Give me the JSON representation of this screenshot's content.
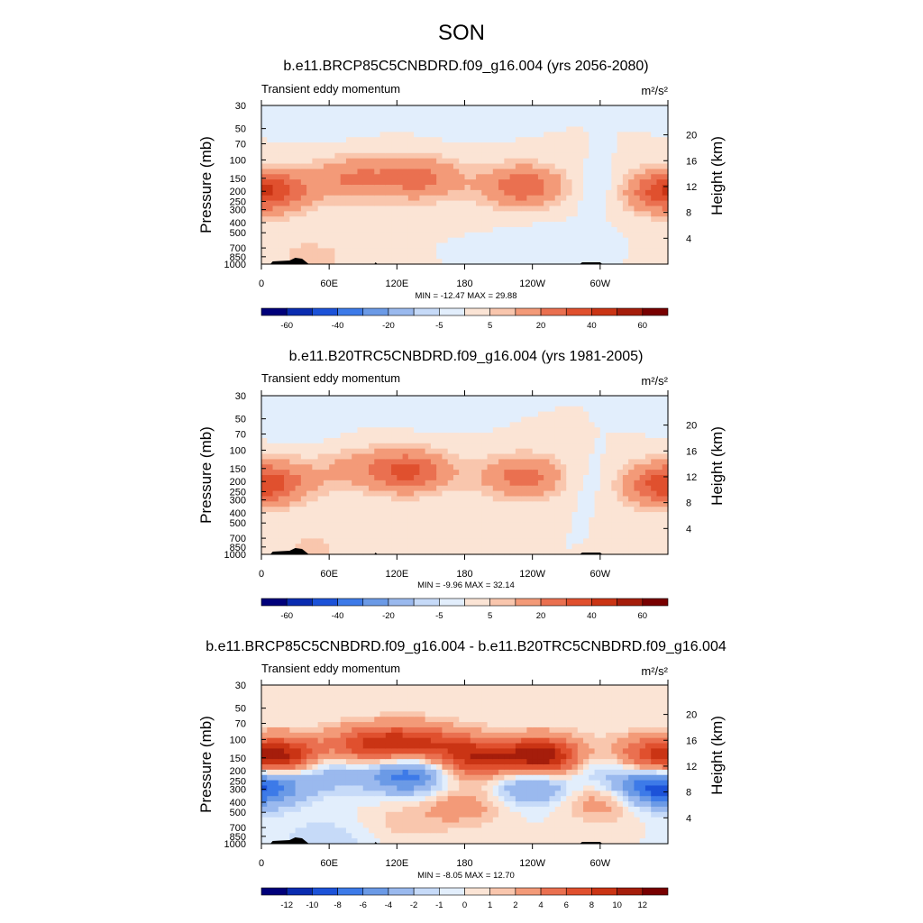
{
  "colors": {
    "scale": [
      "#00007a",
      "#0a2cb0",
      "#1c52d8",
      "#3d7ae8",
      "#6b9ae6",
      "#9ab9ee",
      "#c6daf8",
      "#e2eefc",
      "#fbe4d5",
      "#f9c6ad",
      "#f39a78",
      "#ea7050",
      "#e0502e",
      "#ca3414",
      "#a51d0b",
      "#780000"
    ],
    "topo": "#000000",
    "frame": "#000000"
  },
  "chart_data": {
    "type": "heatmap",
    "main_title": "SON",
    "y_ticks": [
      "30",
      "50",
      "70",
      "100",
      "150",
      "200",
      "250",
      "300",
      "400",
      "500",
      "700",
      "850",
      "1000"
    ],
    "y_ticks_values": [
      30,
      50,
      70,
      100,
      150,
      200,
      250,
      300,
      400,
      500,
      700,
      850,
      1000
    ],
    "height_ticks": [
      "20",
      "16",
      "12",
      "8",
      "4"
    ],
    "height_tick_values": [
      20,
      16,
      12,
      8,
      4
    ],
    "x_ticks": [
      "0",
      "60E",
      "120E",
      "180",
      "120W",
      "60W"
    ],
    "x_tick_values": [
      0,
      60,
      120,
      180,
      240,
      300
    ],
    "x_range": [
      0,
      360
    ],
    "ylabel": "Pressure (mb)",
    "ylabel_right": "Height (km)",
    "panels": [
      {
        "title": "b.e11.BRCP85C5CNBDRD.f09_g16.004 (yrs 2056-2080)",
        "left_label": "Transient eddy momentum",
        "units": "m²/s²",
        "stats": "MIN = -12.47  MAX =  29.88",
        "min": -12.47,
        "max": 29.88,
        "levels": [
          -70,
          -60,
          -50,
          -40,
          -30,
          -20,
          -10,
          -5,
          0,
          5,
          10,
          20,
          30,
          40,
          50,
          60,
          70
        ],
        "colorbar_labels": [
          "-60",
          "-40",
          "-20",
          "-5",
          "5",
          "20",
          "40",
          "60"
        ],
        "features": [
          {
            "lon": 8,
            "lev": 200,
            "value": 22
          },
          {
            "lon": 80,
            "lev": 150,
            "value": 20
          },
          {
            "lon": 140,
            "lev": 150,
            "value": 24
          },
          {
            "lon": 232,
            "lev": 180,
            "value": 28
          },
          {
            "lon": 355,
            "lev": 200,
            "value": 22
          },
          {
            "lon": 305,
            "lev": 190,
            "value": -6
          },
          {
            "lon": 258,
            "lev": 600,
            "value": -2
          },
          {
            "lon": 45,
            "lev": 850,
            "value": 7
          },
          {
            "lon": 180,
            "lev": 40,
            "value": -2
          },
          {
            "lon": 60,
            "lev": 50,
            "value": -1
          }
        ]
      },
      {
        "title": "b.e11.B20TRC5CNBDRD.f09_g16.004 (yrs 1981-2005)",
        "left_label": "Transient eddy momentum",
        "units": "m²/s²",
        "stats": "MIN =  -9.96  MAX =  32.14",
        "min": -9.96,
        "max": 32.14,
        "levels": [
          -70,
          -60,
          -50,
          -40,
          -30,
          -20,
          -10,
          -5,
          0,
          5,
          10,
          20,
          30,
          40,
          50,
          60,
          70
        ],
        "colorbar_labels": [
          "-60",
          "-40",
          "-20",
          "-5",
          "5",
          "20",
          "40",
          "60"
        ],
        "features": [
          {
            "lon": 8,
            "lev": 200,
            "value": 22
          },
          {
            "lon": 130,
            "lev": 160,
            "value": 32
          },
          {
            "lon": 80,
            "lev": 150,
            "value": 10
          },
          {
            "lon": 232,
            "lev": 180,
            "value": 25
          },
          {
            "lon": 352,
            "lev": 220,
            "value": 20
          },
          {
            "lon": 295,
            "lev": 200,
            "value": -4
          },
          {
            "lon": 45,
            "lev": 850,
            "value": 6
          },
          {
            "lon": 150,
            "lev": 40,
            "value": -2
          },
          {
            "lon": 40,
            "lev": 60,
            "value": -2
          }
        ]
      },
      {
        "title": "b.e11.BRCP85C5CNBDRD.f09_g16.004 - b.e11.B20TRC5CNBDRD.f09_g16.004",
        "left_label": "Transient eddy momentum",
        "units": "m²/s²",
        "stats": "MIN =  -8.05  MAX =  12.70",
        "min": -8.05,
        "max": 12.7,
        "levels": [
          -14,
          -12,
          -10,
          -8,
          -6,
          -4,
          -2,
          -1,
          0,
          1,
          2,
          4,
          6,
          8,
          10,
          12,
          14
        ],
        "colorbar_labels": [
          "-12",
          "-10",
          "-8",
          "-6",
          "-4",
          "-2",
          "-1",
          "0",
          "1",
          "2",
          "4",
          "6",
          "8",
          "10",
          "12"
        ],
        "features": [
          {
            "lon": 20,
            "lev": 150,
            "value": 12
          },
          {
            "lon": 95,
            "lev": 115,
            "value": 8
          },
          {
            "lon": 140,
            "lev": 110,
            "value": 7
          },
          {
            "lon": 190,
            "lev": 150,
            "value": 9
          },
          {
            "lon": 250,
            "lev": 150,
            "value": 12.7
          },
          {
            "lon": 330,
            "lev": 150,
            "value": 7
          },
          {
            "lon": 130,
            "lev": 210,
            "value": -8
          },
          {
            "lon": 52,
            "lev": 190,
            "value": -5
          },
          {
            "lon": 240,
            "lev": 260,
            "value": -6
          },
          {
            "lon": 340,
            "lev": 300,
            "value": -6
          },
          {
            "lon": 3,
            "lev": 260,
            "value": -6
          },
          {
            "lon": 305,
            "lev": 170,
            "value": -5
          },
          {
            "lon": 180,
            "lev": 420,
            "value": 3
          },
          {
            "lon": 305,
            "lev": 380,
            "value": 4
          },
          {
            "lon": 130,
            "lev": 600,
            "value": 1.5
          },
          {
            "lon": 55,
            "lev": 930,
            "value": -2
          }
        ]
      }
    ]
  }
}
